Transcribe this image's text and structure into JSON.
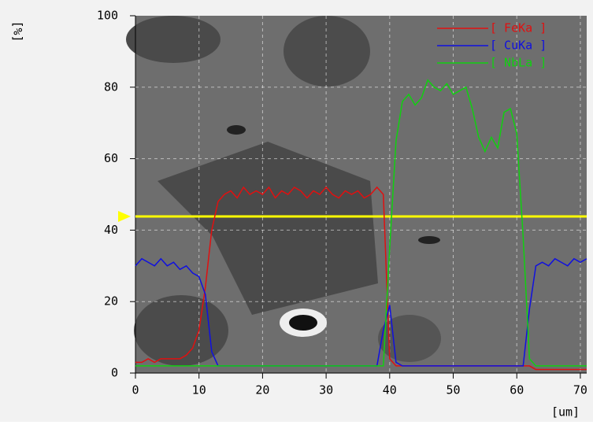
{
  "chart_data": {
    "type": "line",
    "y_label": "[%]",
    "x_label": "[um]",
    "x": [
      0,
      1,
      2,
      3,
      4,
      5,
      6,
      7,
      8,
      9,
      10,
      11,
      12,
      13,
      14,
      15,
      16,
      17,
      18,
      19,
      20,
      21,
      22,
      23,
      24,
      25,
      26,
      27,
      28,
      29,
      30,
      31,
      32,
      33,
      34,
      35,
      36,
      37,
      38,
      39,
      40,
      41,
      42,
      43,
      44,
      45,
      46,
      47,
      48,
      49,
      50,
      51,
      52,
      53,
      54,
      55,
      56,
      57,
      58,
      59,
      60,
      61,
      62,
      63,
      64,
      65,
      66,
      67,
      68,
      69,
      70,
      71
    ],
    "series": [
      {
        "name": "[ FeKa ]",
        "color": "#e01010",
        "values": [
          3,
          3,
          4,
          3,
          4,
          4,
          4,
          4,
          5,
          7,
          12,
          24,
          40,
          48,
          50,
          51,
          49,
          52,
          50,
          51,
          50,
          52,
          49,
          51,
          50,
          52,
          51,
          49,
          51,
          50,
          52,
          50,
          49,
          51,
          50,
          51,
          49,
          50,
          52,
          50,
          4,
          2,
          2,
          2,
          2,
          2,
          2,
          2,
          2,
          2,
          2,
          2,
          2,
          2,
          2,
          2,
          2,
          2,
          2,
          2,
          2,
          2,
          2,
          1,
          1,
          1,
          1,
          1,
          1,
          1,
          1,
          1
        ]
      },
      {
        "name": "[ CuKa ]",
        "color": "#1010e0",
        "values": [
          30,
          32,
          31,
          30,
          32,
          30,
          31,
          29,
          30,
          28,
          27,
          22,
          6,
          2,
          2,
          2,
          2,
          2,
          2,
          2,
          2,
          2,
          2,
          2,
          2,
          2,
          2,
          2,
          2,
          2,
          2,
          2,
          2,
          2,
          2,
          2,
          2,
          2,
          2,
          12,
          19,
          3,
          2,
          2,
          2,
          2,
          2,
          2,
          2,
          2,
          2,
          2,
          2,
          2,
          2,
          2,
          2,
          2,
          2,
          2,
          2,
          2,
          18,
          30,
          31,
          30,
          32,
          31,
          30,
          32,
          31,
          32
        ]
      },
      {
        "name": "[ NbLa ]",
        "color": "#10d010",
        "values": [
          2,
          2,
          2,
          2,
          2,
          2,
          2,
          2,
          2,
          2,
          2,
          2,
          2,
          2,
          2,
          2,
          2,
          2,
          2,
          2,
          2,
          2,
          2,
          2,
          2,
          2,
          2,
          2,
          2,
          2,
          2,
          2,
          2,
          2,
          2,
          2,
          2,
          2,
          2,
          2,
          35,
          65,
          76,
          78,
          75,
          77,
          82,
          80,
          79,
          81,
          78,
          79,
          80,
          74,
          66,
          62,
          66,
          63,
          73,
          74,
          67,
          38,
          4,
          2,
          2,
          2,
          2,
          2,
          2,
          2,
          2,
          2
        ]
      }
    ],
    "xlim": [
      0,
      71
    ],
    "ylim": [
      0,
      100
    ],
    "xticks": [
      0,
      10,
      20,
      30,
      40,
      50,
      60,
      70
    ],
    "yticks": [
      0,
      20,
      40,
      60,
      80,
      100
    ],
    "grid": true
  }
}
